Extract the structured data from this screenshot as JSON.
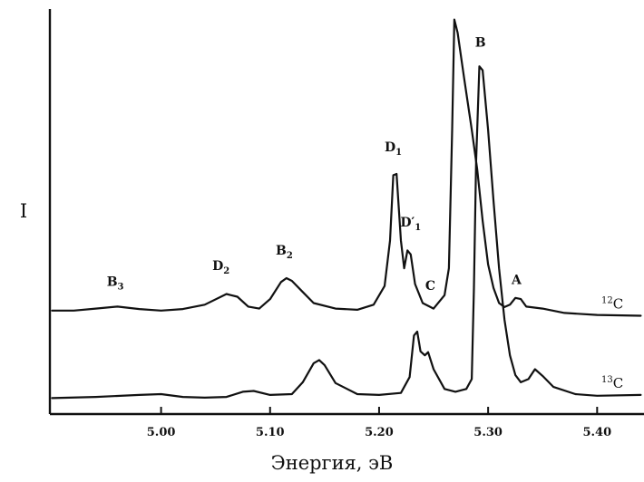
{
  "chart_data": {
    "type": "line",
    "title": "",
    "xlabel": "Энергия, эВ",
    "ylabel": "I",
    "xlim": [
      4.898,
      5.443
    ],
    "ylim": [
      0,
      1
    ],
    "x_ticks": [
      {
        "value": 5.0,
        "label": "5.00"
      },
      {
        "value": 5.1,
        "label": "5.10"
      },
      {
        "value": 5.2,
        "label": "5.20"
      },
      {
        "value": 5.3,
        "label": "5.30"
      },
      {
        "value": 5.4,
        "label": "5.40"
      }
    ],
    "grid": false,
    "series": [
      {
        "name": "¹²C",
        "points": [
          [
            4.9,
            0.243
          ],
          [
            4.92,
            0.243
          ],
          [
            4.94,
            0.248
          ],
          [
            4.96,
            0.253
          ],
          [
            4.98,
            0.247
          ],
          [
            5.0,
            0.243
          ],
          [
            5.02,
            0.247
          ],
          [
            5.04,
            0.258
          ],
          [
            5.06,
            0.285
          ],
          [
            5.07,
            0.278
          ],
          [
            5.08,
            0.253
          ],
          [
            5.09,
            0.248
          ],
          [
            5.1,
            0.272
          ],
          [
            5.11,
            0.315
          ],
          [
            5.115,
            0.325
          ],
          [
            5.12,
            0.318
          ],
          [
            5.13,
            0.29
          ],
          [
            5.14,
            0.262
          ],
          [
            5.16,
            0.248
          ],
          [
            5.18,
            0.245
          ],
          [
            5.195,
            0.258
          ],
          [
            5.205,
            0.305
          ],
          [
            5.21,
            0.42
          ],
          [
            5.213,
            0.585
          ],
          [
            5.216,
            0.588
          ],
          [
            5.22,
            0.42
          ],
          [
            5.223,
            0.35
          ],
          [
            5.226,
            0.395
          ],
          [
            5.229,
            0.385
          ],
          [
            5.233,
            0.31
          ],
          [
            5.24,
            0.262
          ],
          [
            5.25,
            0.248
          ],
          [
            5.26,
            0.282
          ],
          [
            5.264,
            0.35
          ],
          [
            5.267,
            0.7
          ],
          [
            5.269,
            0.978
          ],
          [
            5.272,
            0.945
          ],
          [
            5.278,
            0.83
          ],
          [
            5.285,
            0.7
          ],
          [
            5.29,
            0.6
          ],
          [
            5.295,
            0.47
          ],
          [
            5.3,
            0.36
          ],
          [
            5.305,
            0.3
          ],
          [
            5.31,
            0.262
          ],
          [
            5.315,
            0.252
          ],
          [
            5.32,
            0.258
          ],
          [
            5.325,
            0.275
          ],
          [
            5.33,
            0.272
          ],
          [
            5.335,
            0.253
          ],
          [
            5.35,
            0.248
          ],
          [
            5.37,
            0.237
          ],
          [
            5.4,
            0.232
          ],
          [
            5.44,
            0.23
          ]
        ]
      },
      {
        "name": "¹³C",
        "points": [
          [
            4.9,
            0.022
          ],
          [
            4.94,
            0.025
          ],
          [
            4.98,
            0.03
          ],
          [
            5.0,
            0.032
          ],
          [
            5.02,
            0.025
          ],
          [
            5.04,
            0.023
          ],
          [
            5.06,
            0.025
          ],
          [
            5.075,
            0.038
          ],
          [
            5.085,
            0.04
          ],
          [
            5.1,
            0.03
          ],
          [
            5.12,
            0.032
          ],
          [
            5.13,
            0.062
          ],
          [
            5.14,
            0.11
          ],
          [
            5.145,
            0.118
          ],
          [
            5.15,
            0.105
          ],
          [
            5.16,
            0.06
          ],
          [
            5.18,
            0.032
          ],
          [
            5.2,
            0.03
          ],
          [
            5.22,
            0.035
          ],
          [
            5.228,
            0.075
          ],
          [
            5.232,
            0.18
          ],
          [
            5.235,
            0.19
          ],
          [
            5.238,
            0.14
          ],
          [
            5.242,
            0.13
          ],
          [
            5.245,
            0.138
          ],
          [
            5.25,
            0.095
          ],
          [
            5.26,
            0.045
          ],
          [
            5.27,
            0.038
          ],
          [
            5.28,
            0.045
          ],
          [
            5.285,
            0.07
          ],
          [
            5.287,
            0.3
          ],
          [
            5.289,
            0.62
          ],
          [
            5.292,
            0.86
          ],
          [
            5.295,
            0.85
          ],
          [
            5.3,
            0.7
          ],
          [
            5.305,
            0.52
          ],
          [
            5.31,
            0.35
          ],
          [
            5.315,
            0.22
          ],
          [
            5.32,
            0.13
          ],
          [
            5.325,
            0.08
          ],
          [
            5.33,
            0.062
          ],
          [
            5.337,
            0.07
          ],
          [
            5.343,
            0.095
          ],
          [
            5.35,
            0.078
          ],
          [
            5.36,
            0.05
          ],
          [
            5.38,
            0.032
          ],
          [
            5.4,
            0.028
          ],
          [
            5.44,
            0.03
          ]
        ]
      }
    ],
    "series_labels": [
      {
        "text": "12",
        "suffix": "C",
        "series": 0
      },
      {
        "text": "13",
        "suffix": "C",
        "series": 1
      }
    ],
    "annotations": [
      {
        "main": "B",
        "sub": "3",
        "x": 4.958,
        "y": 0.305
      },
      {
        "main": "D",
        "sub": "2",
        "x": 5.055,
        "y": 0.345
      },
      {
        "main": "B",
        "sub": "2",
        "x": 5.113,
        "y": 0.385
      },
      {
        "main": "D",
        "sub": "1",
        "x": 5.213,
        "y": 0.645
      },
      {
        "main": "D′",
        "sub": "1",
        "x": 5.229,
        "y": 0.455
      },
      {
        "main": "C",
        "sub": "",
        "x": 5.247,
        "y": 0.295
      },
      {
        "main": "B",
        "sub": "",
        "x": 5.293,
        "y": 0.91
      },
      {
        "main": "A",
        "sub": "",
        "x": 5.326,
        "y": 0.31
      }
    ]
  }
}
